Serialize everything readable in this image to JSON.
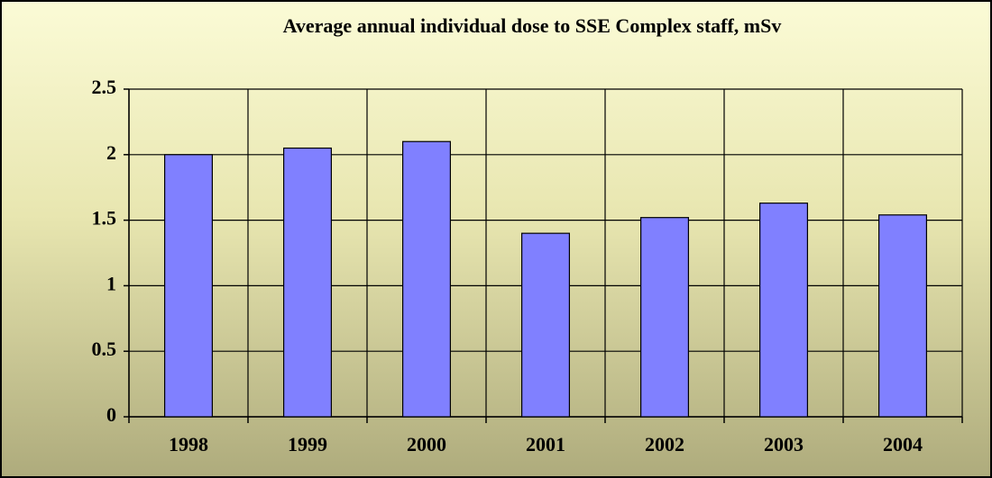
{
  "chart_data": {
    "type": "bar",
    "title": "Average annual individual dose to SSE Complex staff, mSv",
    "categories": [
      "1998",
      "1999",
      "2000",
      "2001",
      "2002",
      "2003",
      "2004"
    ],
    "values": [
      2.0,
      2.05,
      2.1,
      1.4,
      1.52,
      1.63,
      1.54
    ],
    "color": "#8080ff",
    "ylim": [
      0,
      2.5
    ],
    "yticks": [
      0,
      0.5,
      1,
      1.5,
      2,
      2.5
    ],
    "grid": true
  }
}
